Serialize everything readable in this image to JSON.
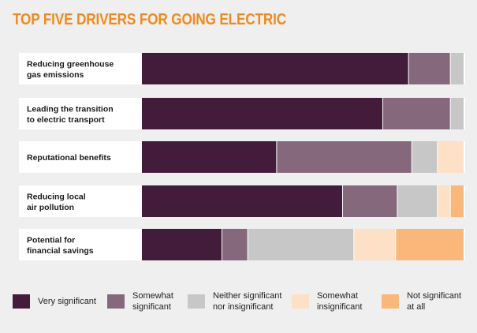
{
  "title": "TOP FIVE DRIVERS FOR GOING ELECTRIC",
  "colors": {
    "background": "#efefef",
    "row_band": "#ffffff",
    "title": "#f08a1c",
    "segments": [
      "#431b3b",
      "#85687c",
      "#c7c7c7",
      "#fde0c6",
      "#f9b87a"
    ]
  },
  "legend": [
    {
      "label": "Very significant"
    },
    {
      "label": "Somewhat\nsignificant"
    },
    {
      "label": "Neither significant\nnor insignificant"
    },
    {
      "label": "Somewhat\ninsignificant"
    },
    {
      "label": "Not significant\nat all"
    }
  ],
  "chart_data": {
    "type": "bar",
    "orientation": "horizontal",
    "stacked": true,
    "unit": "percent",
    "title": "TOP FIVE DRIVERS FOR GOING ELECTRIC",
    "categories": [
      "Reducing greenhouse\ngas emissions",
      "Leading the transition\nto electric transport",
      "Reputational benefits",
      "Reducing local\nair pollution",
      "Potential for\nfinancial savings"
    ],
    "series": [
      {
        "name": "Very significant",
        "values": [
          83,
          75,
          42,
          62.5,
          25
        ]
      },
      {
        "name": "Somewhat significant",
        "values": [
          13,
          21,
          42,
          17,
          8
        ]
      },
      {
        "name": "Neither significant nor insignificant",
        "values": [
          4,
          4,
          8,
          12.5,
          33
        ]
      },
      {
        "name": "Somewhat insignificant",
        "values": [
          0,
          0,
          8,
          4,
          13
        ]
      },
      {
        "name": "Not significant at all",
        "values": [
          0,
          0,
          0,
          4,
          21
        ]
      }
    ],
    "xlim": [
      0,
      100
    ],
    "grid": false,
    "legend_position": "bottom"
  }
}
